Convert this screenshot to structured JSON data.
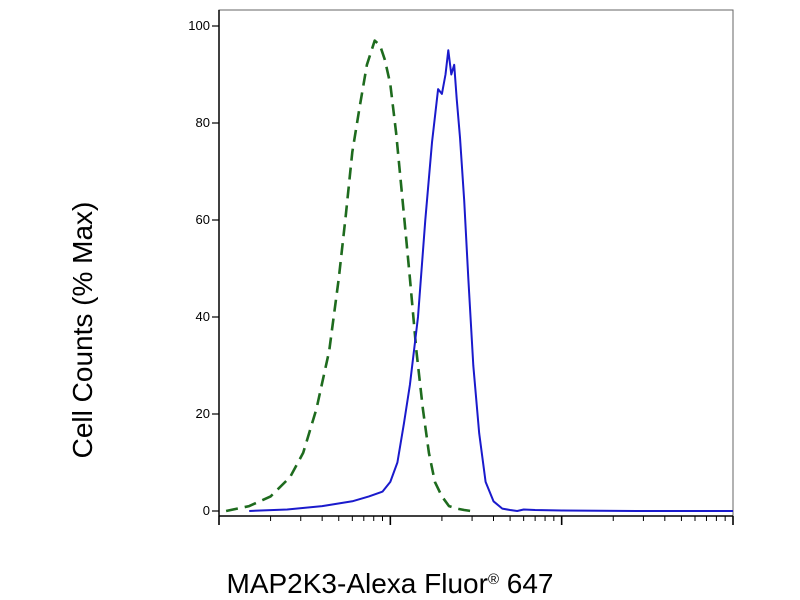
{
  "chart_data": {
    "type": "line",
    "xlabel": {
      "before": "MAP2K3-Alexa Fluor",
      "sup": "®",
      "after": " 647"
    },
    "ylabel": "Cell Counts (% Max)",
    "x_scale": "log",
    "xlim": [
      1,
      1000
    ],
    "ylim": [
      0,
      100
    ],
    "yticks": [
      0,
      20,
      40,
      60,
      80,
      100
    ],
    "ytick_labels": [
      "0",
      "20",
      "40",
      "60",
      "80",
      "100"
    ],
    "xtick_labels": [],
    "grid": false,
    "legend": "none",
    "series": [
      {
        "style": "dashed",
        "color": "#1e6b1e",
        "x": [
          1.1,
          1.5,
          2.0,
          2.6,
          3.1,
          3.7,
          4.4,
          5.0,
          5.5,
          6.0,
          6.6,
          7.3,
          8.1,
          8.7,
          9.3,
          10.0,
          10.8,
          11.8,
          13.0,
          14.2,
          15.5,
          16.8,
          18.2,
          20.0,
          22.0,
          24.5,
          27.0,
          29.5
        ],
        "values": [
          0,
          1,
          3,
          7,
          12,
          21,
          33,
          48,
          61,
          74,
          83,
          92,
          97,
          96,
          93,
          88,
          78,
          64,
          48,
          33,
          21,
          12,
          6,
          3,
          1,
          0.5,
          0.2,
          0
        ]
      },
      {
        "style": "solid",
        "color": "#1a1acc",
        "x": [
          1.5,
          2.5,
          4.0,
          6.0,
          7.5,
          9.0,
          10.0,
          11.0,
          12.0,
          13.0,
          14.5,
          16.0,
          17.5,
          19.0,
          20.0,
          21.0,
          21.8,
          22.7,
          23.6,
          24.4,
          25.5,
          27.0,
          28.5,
          30.5,
          33.0,
          36.0,
          40.0,
          45.0,
          50.0,
          55.0,
          60.0,
          70.0,
          100.0,
          300.0,
          1000.0
        ],
        "values": [
          0,
          0.3,
          1,
          2,
          3,
          4,
          6,
          10,
          18,
          26,
          40,
          60,
          76,
          87,
          86,
          90,
          95,
          90,
          92,
          85,
          77,
          64,
          48,
          30,
          16,
          6,
          2,
          0.5,
          0.2,
          0,
          0.3,
          0.2,
          0.1,
          0,
          0
        ]
      }
    ]
  }
}
